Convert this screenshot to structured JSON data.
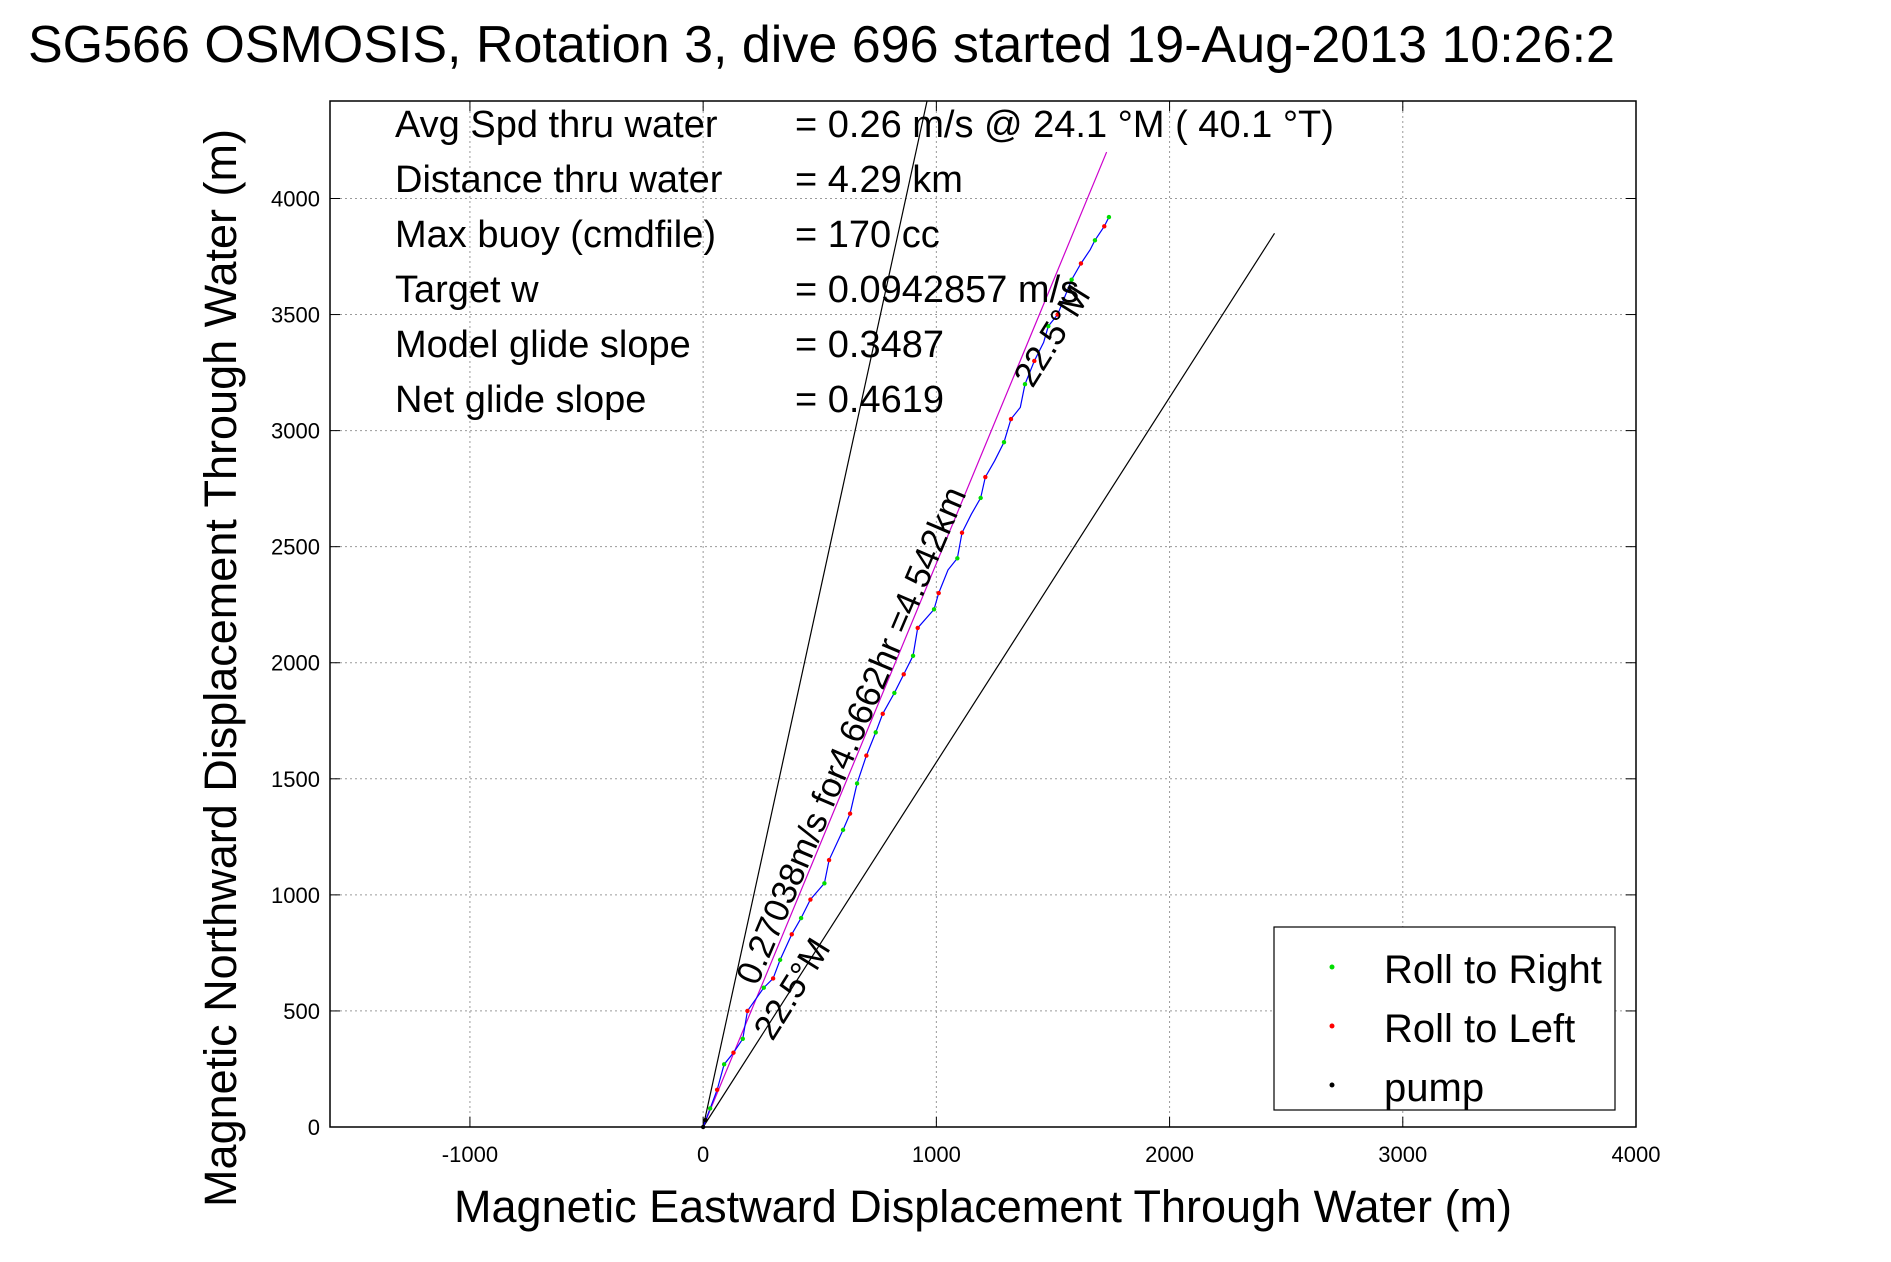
{
  "chart_data": {
    "type": "line",
    "title": "SG566 OSMOSIS, Rotation 3, dive 696 started 19-Aug-2013 10:26:2",
    "xlabel": "Magnetic Eastward Displacement Through Water (m)",
    "ylabel": "Magnetic Northward Displacement Through Water (m)",
    "xlim": [
      -1600,
      4000
    ],
    "ylim": [
      0,
      4420
    ],
    "xticks": [
      -1000,
      0,
      1000,
      2000,
      3000,
      4000
    ],
    "yticks": [
      0,
      500,
      1000,
      1500,
      2000,
      2500,
      3000,
      3500,
      4000
    ],
    "xtick_labels": [
      "-1000",
      "0",
      "1000",
      "2000",
      "3000",
      "4000"
    ],
    "ytick_labels": [
      "0",
      "500",
      "1000",
      "1500",
      "2000",
      "2500",
      "3000",
      "3500",
      "4000"
    ],
    "grid": true,
    "legend_position": "bottom-right",
    "stats": [
      {
        "label": "Avg Spd thru water",
        "value": "=  0.26 m/s @  24.1 °M ( 40.1 °T)"
      },
      {
        "label": "Distance thru water",
        "value": "=  4.29 km"
      },
      {
        "label": "Max buoy (cmdfile)",
        "value": "= 170 cc"
      },
      {
        "label": "Target w",
        "value": "= 0.0942857 m/s"
      },
      {
        "label": "Model glide slope",
        "value": "= 0.3487"
      },
      {
        "label": "Net glide slope",
        "value": "= 0.4619"
      }
    ],
    "annotations": {
      "velocity": "0.27038m/s for4.6662hr =4.542km",
      "cone_left": "22.5°M",
      "cone_right": "22.5°M"
    },
    "reference_lines": [
      {
        "name": "cone-left-line",
        "color": "#000000",
        "x": [
          0,
          960
        ],
        "y": [
          0,
          4420
        ]
      },
      {
        "name": "cone-right-line",
        "color": "#000000",
        "x": [
          0,
          2450
        ],
        "y": [
          0,
          3850
        ]
      },
      {
        "name": "mean-track-line",
        "color": "#cc00cc",
        "x": [
          0,
          1730
        ],
        "y": [
          0,
          4200
        ]
      }
    ],
    "series": [
      {
        "name": "track",
        "color": "#0000ff",
        "x": [
          0,
          30,
          60,
          90,
          130,
          170,
          190,
          260,
          300,
          330,
          380,
          420,
          460,
          520,
          540,
          600,
          630,
          660,
          700,
          740,
          770,
          820,
          860,
          900,
          920,
          990,
          1010,
          1050,
          1090,
          1110,
          1150,
          1190,
          1210,
          1250,
          1290,
          1320,
          1360,
          1380,
          1420,
          1460,
          1480,
          1520,
          1560,
          1580,
          1620,
          1660,
          1680,
          1720,
          1740
        ],
        "y": [
          0,
          80,
          160,
          270,
          320,
          380,
          500,
          600,
          640,
          720,
          830,
          900,
          980,
          1050,
          1150,
          1280,
          1350,
          1480,
          1600,
          1700,
          1780,
          1870,
          1950,
          2030,
          2150,
          2230,
          2300,
          2400,
          2450,
          2560,
          2640,
          2710,
          2800,
          2870,
          2950,
          3050,
          3100,
          3200,
          3300,
          3380,
          3450,
          3500,
          3600,
          3650,
          3720,
          3780,
          3820,
          3880,
          3920
        ]
      },
      {
        "name": "Roll to Right",
        "color": "#00dd00",
        "x": [
          30,
          90,
          170,
          260,
          330,
          420,
          520,
          600,
          660,
          740,
          820,
          900,
          990,
          1090,
          1190,
          1290,
          1380,
          1480,
          1580,
          1680,
          1740
        ],
        "y": [
          80,
          270,
          380,
          600,
          720,
          900,
          1050,
          1280,
          1480,
          1700,
          1870,
          2030,
          2230,
          2450,
          2710,
          2950,
          3200,
          3450,
          3650,
          3820,
          3920
        ]
      },
      {
        "name": "Roll to Left",
        "color": "#ff0000",
        "x": [
          60,
          130,
          190,
          300,
          380,
          460,
          540,
          630,
          700,
          770,
          860,
          920,
          1010,
          1110,
          1210,
          1320,
          1420,
          1520,
          1620,
          1720
        ],
        "y": [
          160,
          320,
          500,
          640,
          830,
          980,
          1150,
          1350,
          1600,
          1780,
          1950,
          2150,
          2300,
          2560,
          2800,
          3050,
          3300,
          3500,
          3720,
          3880
        ]
      },
      {
        "name": "pump",
        "color": "#000000",
        "x": [
          0,
          10
        ],
        "y": [
          0,
          30
        ]
      }
    ]
  }
}
